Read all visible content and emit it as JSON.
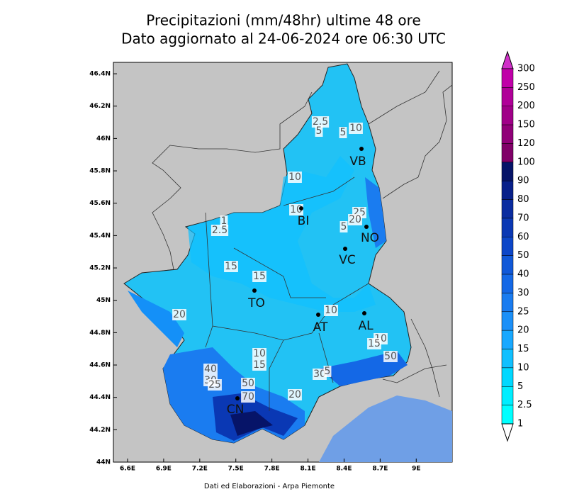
{
  "header": {
    "title": "Precipitazioni (mm/48hr) ultime 48 ore",
    "subtitle": "Dato aggiornato al 24-06-2024 ore 06:30 UTC"
  },
  "map": {
    "lat_ticks": [
      {
        "value": 46.4,
        "label": "46.4N"
      },
      {
        "value": 46.2,
        "label": "46.2N"
      },
      {
        "value": 46,
        "label": "46N"
      },
      {
        "value": 45.8,
        "label": "45.8N"
      },
      {
        "value": 45.6,
        "label": "45.6N"
      },
      {
        "value": 45.4,
        "label": "45.4N"
      },
      {
        "value": 45.2,
        "label": "45.2N"
      },
      {
        "value": 45,
        "label": "45N"
      },
      {
        "value": 44.8,
        "label": "44.8N"
      },
      {
        "value": 44.6,
        "label": "44.6N"
      },
      {
        "value": 44.4,
        "label": "44.4N"
      },
      {
        "value": 44.2,
        "label": "44.2N"
      },
      {
        "value": 44,
        "label": "44N"
      }
    ],
    "lon_ticks": [
      {
        "value": 6.6,
        "label": "6.6E"
      },
      {
        "value": 6.9,
        "label": "6.9E"
      },
      {
        "value": 7.2,
        "label": "7.2E"
      },
      {
        "value": 7.5,
        "label": "7.5E"
      },
      {
        "value": 7.8,
        "label": "7.8E"
      },
      {
        "value": 8.1,
        "label": "8.1E"
      },
      {
        "value": 8.4,
        "label": "8.4E"
      },
      {
        "value": 8.7,
        "label": "8.7E"
      },
      {
        "value": 9,
        "label": "9E"
      }
    ],
    "cities": [
      "VB",
      "BI",
      "NO",
      "VC",
      "TO",
      "AT",
      "AL",
      "CN"
    ],
    "contour_labels": [
      "2.5",
      "5",
      "5",
      "10",
      "10",
      "10",
      "25",
      "20",
      "5",
      "1",
      "2.5",
      "15",
      "15",
      "20",
      "10",
      "10",
      "15",
      "50",
      "10",
      "15",
      "40",
      "30",
      "25",
      "50",
      "70",
      "20",
      "30",
      "5"
    ]
  },
  "legend": {
    "labels": [
      "300",
      "250",
      "200",
      "150",
      "120",
      "100",
      "90",
      "80",
      "70",
      "60",
      "50",
      "40",
      "30",
      "25",
      "20",
      "15",
      "10",
      "5",
      "2.5",
      "1"
    ],
    "colors": [
      "#d030c8",
      "#c000a8",
      "#b00098",
      "#a00088",
      "#900078",
      "#800068",
      "#061468",
      "#08208a",
      "#0a2ca0",
      "#0a38b4",
      "#0c46c8",
      "#1058d8",
      "#1468e6",
      "#1a7cf0",
      "#1c90f8",
      "#18a8ff",
      "#10c0ff",
      "#00d8ff",
      "#00eeff",
      "#00ffff",
      "#ffffff"
    ]
  },
  "footer": "Dati ed Elaborazioni - Arpa Piemonte"
}
